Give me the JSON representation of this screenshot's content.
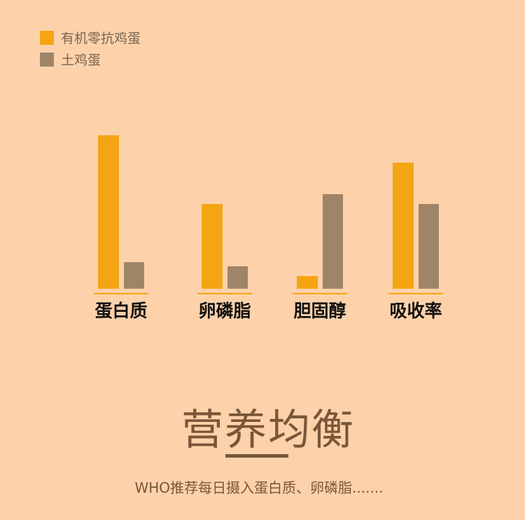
{
  "chart_data": {
    "type": "bar",
    "categories": [
      "蛋白质",
      "卵磷脂",
      "胆固醇",
      "吸收率"
    ],
    "series": [
      {
        "name": "有机零抗鸡蛋",
        "color": "#f5a414",
        "values": [
          219,
          121,
          18,
          180
        ]
      },
      {
        "name": "土鸡蛋",
        "color": "#a08468",
        "values": [
          38,
          32,
          135,
          121
        ]
      }
    ],
    "legend": "top-left",
    "grid": false,
    "ylim": [
      0,
      219
    ],
    "axis_line_color": "#f5a414"
  },
  "title": "营养均衡",
  "subtitle": "WHO推荐每日摄入蛋白质、卵磷脂......."
}
